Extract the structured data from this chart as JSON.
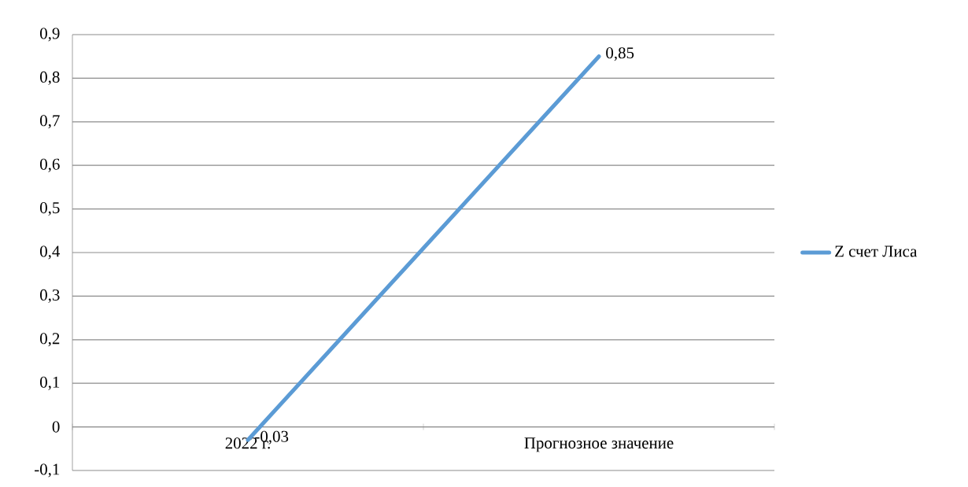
{
  "chart_data": {
    "type": "line",
    "categories": [
      "2022 г.",
      "Прогнозное значение"
    ],
    "series": [
      {
        "name": "Z счет Лиса",
        "color": "#5b9bd5",
        "values": [
          -0.03,
          0.85
        ],
        "value_labels": [
          "-0,03",
          "0,85"
        ]
      }
    ],
    "ylim": [
      -0.1,
      0.9
    ],
    "yticks": [
      {
        "value": -0.1,
        "label": "-0,1"
      },
      {
        "value": 0,
        "label": "0"
      },
      {
        "value": 0.1,
        "label": "0,1"
      },
      {
        "value": 0.2,
        "label": "0,2"
      },
      {
        "value": 0.3,
        "label": "0,3"
      },
      {
        "value": 0.4,
        "label": "0,4"
      },
      {
        "value": 0.5,
        "label": "0,5"
      },
      {
        "value": 0.6,
        "label": "0,6"
      },
      {
        "value": 0.7,
        "label": "0,7"
      },
      {
        "value": 0.8,
        "label": "0,8"
      },
      {
        "value": 0.9,
        "label": "0,9"
      }
    ],
    "grid": "y",
    "legend": "right"
  }
}
